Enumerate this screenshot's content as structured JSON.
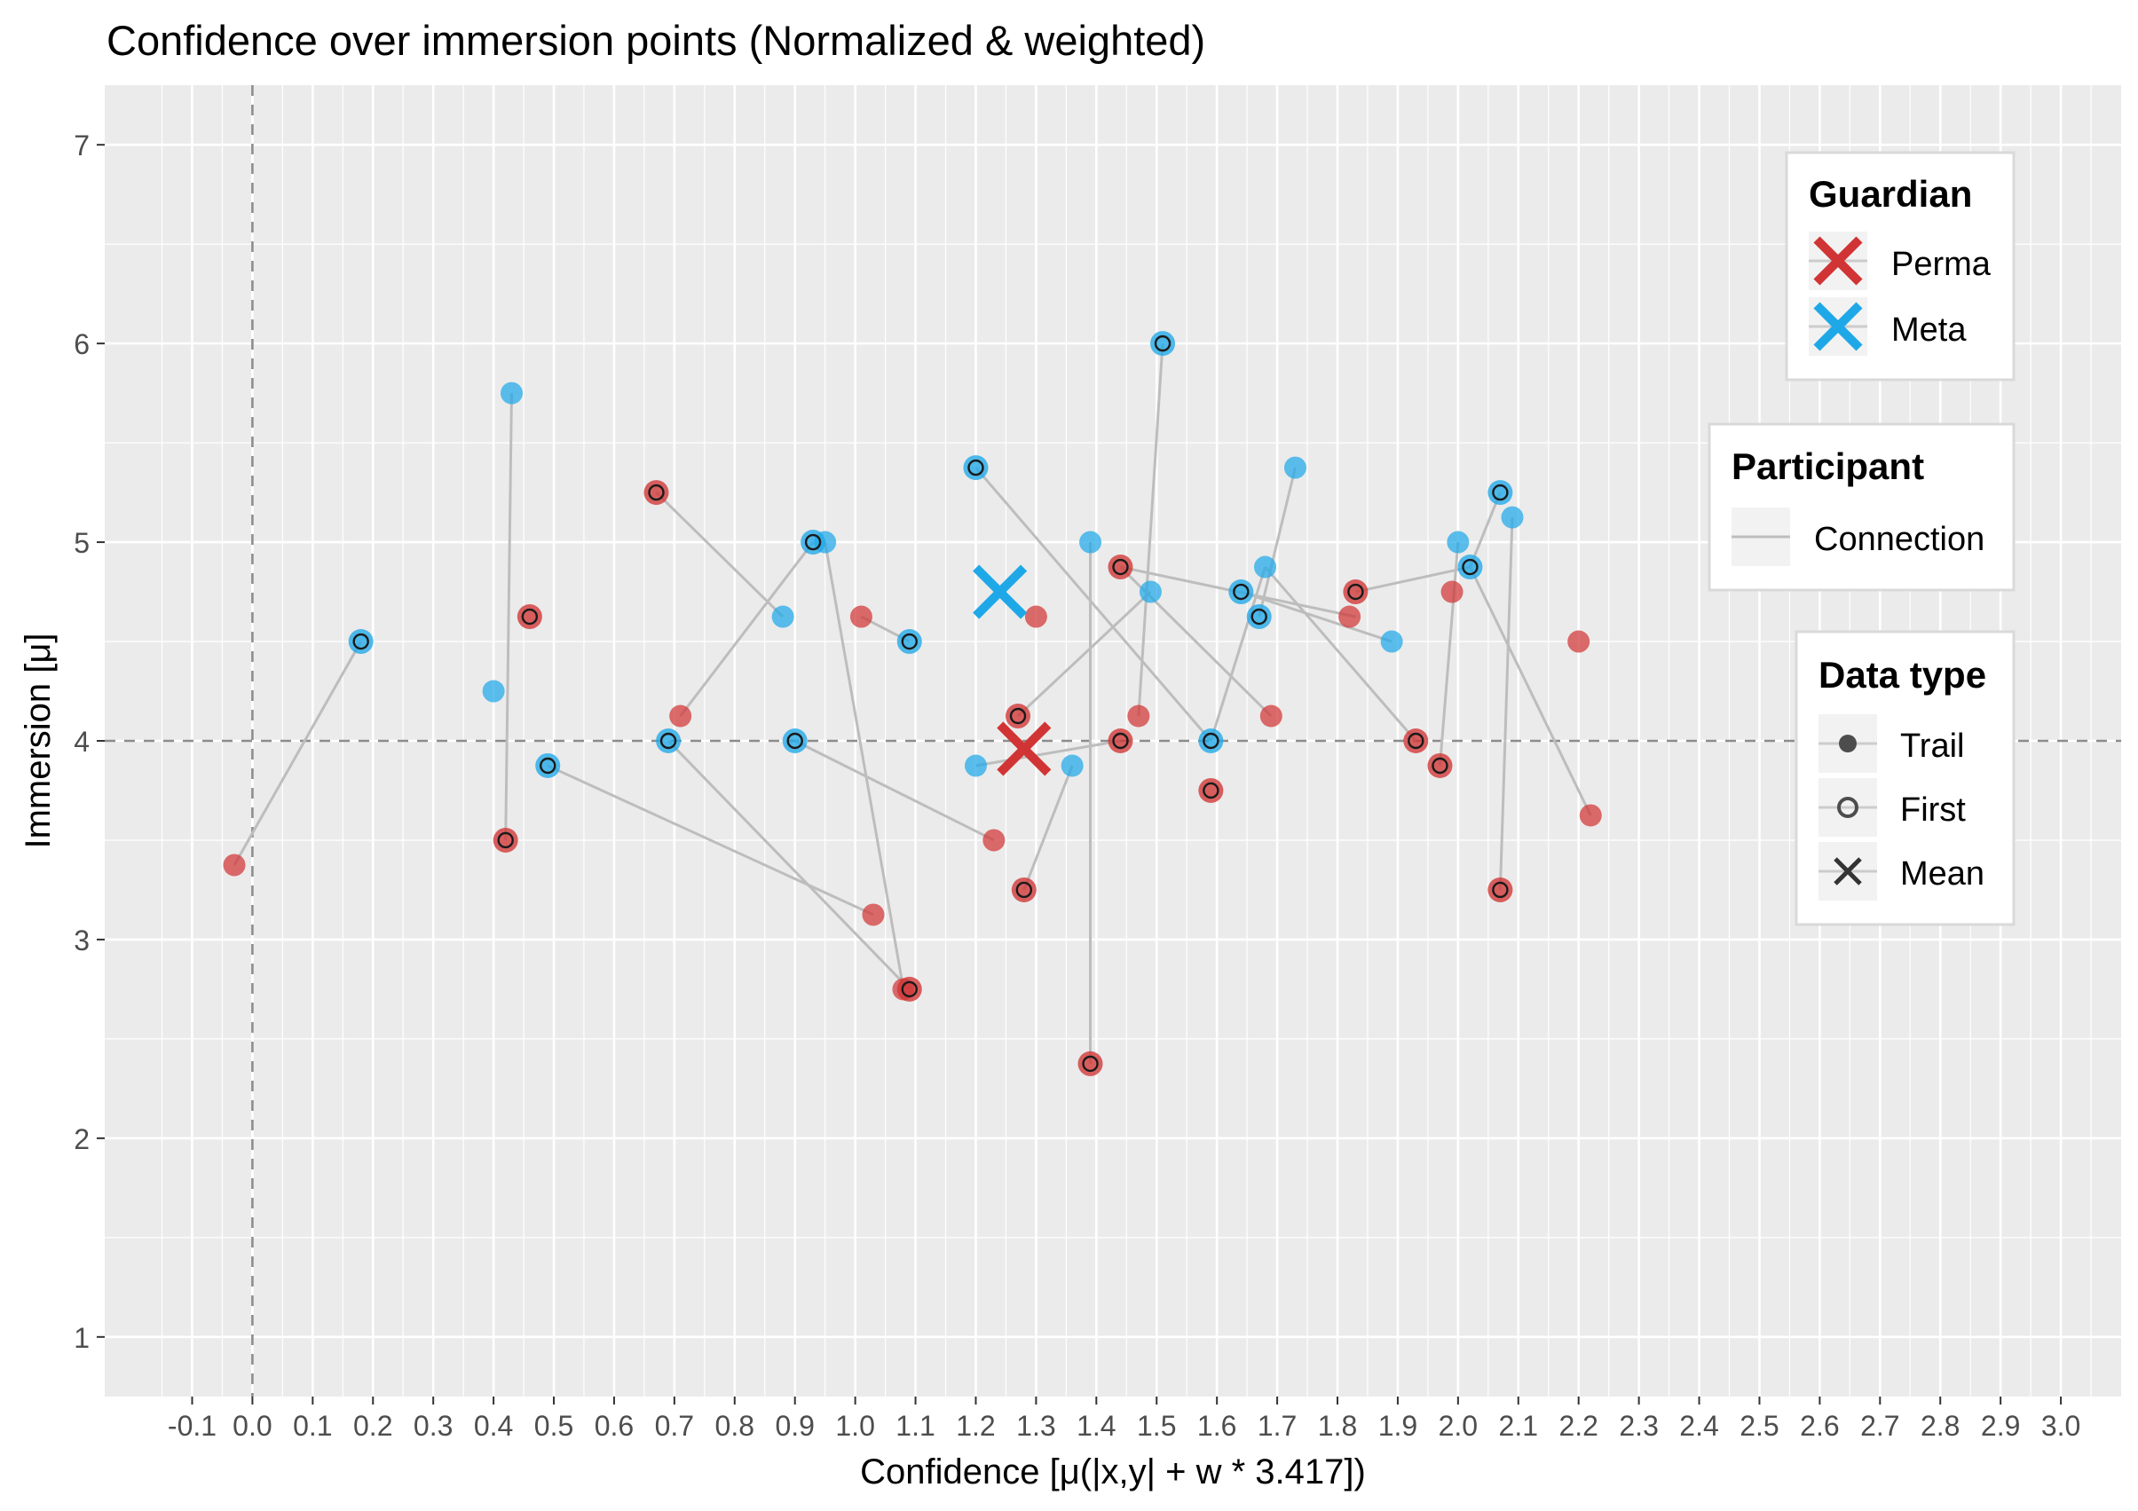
{
  "chart_data": {
    "type": "scatter",
    "title": "Confidence over immersion points (Normalized & weighted)",
    "xlabel": "Confidence [μ(|x,y| + w * 3.417])",
    "ylabel": "Immersion [μ]",
    "xlim": [
      -0.245,
      3.1
    ],
    "ylim": [
      0.7,
      7.3
    ],
    "x_ticks": [
      "-0.1",
      "0.0",
      "0.1",
      "0.2",
      "0.3",
      "0.4",
      "0.5",
      "0.6",
      "0.7",
      "0.8",
      "0.9",
      "1.0",
      "1.1",
      "1.2",
      "1.3",
      "1.4",
      "1.5",
      "1.6",
      "1.7",
      "1.8",
      "1.9",
      "2.0",
      "2.1",
      "2.2",
      "2.3",
      "2.4",
      "2.5",
      "2.6",
      "2.7",
      "2.8",
      "2.9",
      "3.0"
    ],
    "y_ticks": [
      "1",
      "2",
      "3",
      "4",
      "5",
      "6",
      "7"
    ],
    "grid": true,
    "reference_lines": {
      "x": 0.0,
      "y": 4.0
    },
    "colors": {
      "Perma": "#d13434",
      "Meta": "#1fa8e8",
      "Connection": "#bdbdbd",
      "panel": "#ebebeb",
      "grid": "#ffffff"
    },
    "legend_placement": "right",
    "legends": {
      "guardian": {
        "title": "Guardian",
        "items": [
          "Perma",
          "Meta"
        ]
      },
      "participant": {
        "title": "Participant",
        "items": [
          "Connection"
        ]
      },
      "data_type": {
        "title": "Data type",
        "items": [
          "Trail",
          "First",
          "Mean"
        ]
      }
    },
    "series": [
      {
        "name": "Meta",
        "first": [
          [
            0.18,
            4.5
          ],
          [
            0.49,
            3.875
          ],
          [
            0.69,
            4.0
          ],
          [
            0.93,
            5.0
          ],
          [
            0.9,
            4.0
          ],
          [
            1.09,
            4.5
          ],
          [
            1.2,
            5.375
          ],
          [
            1.51,
            6.0
          ],
          [
            1.59,
            4.0
          ],
          [
            1.64,
            4.75
          ],
          [
            1.67,
            4.625
          ],
          [
            2.02,
            4.875
          ],
          [
            2.07,
            5.25
          ]
        ],
        "trail": [
          [
            0.4,
            4.25
          ],
          [
            0.43,
            5.75
          ],
          [
            0.95,
            5.0
          ],
          [
            0.88,
            4.625
          ],
          [
            1.2,
            3.875
          ],
          [
            1.39,
            5.0
          ],
          [
            1.36,
            3.875
          ],
          [
            1.49,
            4.75
          ],
          [
            1.68,
            4.875
          ],
          [
            1.73,
            5.375
          ],
          [
            1.89,
            4.5
          ],
          [
            2.0,
            5.0
          ],
          [
            2.09,
            5.125
          ]
        ],
        "mean": [
          1.24,
          4.75
        ]
      },
      {
        "name": "Perma",
        "first": [
          [
            0.42,
            3.5
          ],
          [
            0.46,
            4.625
          ],
          [
            0.67,
            5.25
          ],
          [
            1.09,
            2.75
          ],
          [
            1.27,
            4.125
          ],
          [
            1.28,
            3.25
          ],
          [
            1.39,
            2.375
          ],
          [
            1.44,
            4.875
          ],
          [
            1.44,
            4.0
          ],
          [
            1.59,
            3.75
          ],
          [
            1.83,
            4.75
          ],
          [
            1.93,
            4.0
          ],
          [
            1.97,
            3.875
          ],
          [
            2.07,
            3.25
          ]
        ],
        "trail": [
          [
            -0.03,
            3.375
          ],
          [
            0.71,
            4.125
          ],
          [
            1.01,
            4.625
          ],
          [
            1.03,
            3.125
          ],
          [
            1.08,
            2.75
          ],
          [
            1.23,
            3.5
          ],
          [
            1.3,
            4.625
          ],
          [
            1.47,
            4.125
          ],
          [
            1.69,
            4.125
          ],
          [
            1.82,
            4.625
          ],
          [
            1.99,
            4.75
          ],
          [
            2.2,
            4.5
          ],
          [
            2.22,
            3.625
          ]
        ],
        "mean": [
          1.28,
          3.96
        ]
      }
    ],
    "connections": [
      [
        [
          -0.03,
          3.375
        ],
        [
          0.18,
          4.5
        ]
      ],
      [
        [
          0.43,
          5.75
        ],
        [
          0.42,
          3.5
        ]
      ],
      [
        [
          0.49,
          3.875
        ],
        [
          1.03,
          3.125
        ]
      ],
      [
        [
          0.67,
          5.25
        ],
        [
          0.88,
          4.625
        ]
      ],
      [
        [
          0.71,
          4.125
        ],
        [
          0.93,
          5.0
        ]
      ],
      [
        [
          0.95,
          5.0
        ],
        [
          1.08,
          2.75
        ]
      ],
      [
        [
          0.69,
          4.0
        ],
        [
          1.09,
          2.75
        ]
      ],
      [
        [
          0.9,
          4.0
        ],
        [
          1.23,
          3.5
        ]
      ],
      [
        [
          1.01,
          4.625
        ],
        [
          1.09,
          4.5
        ]
      ],
      [
        [
          1.2,
          5.375
        ],
        [
          1.59,
          4.0
        ]
      ],
      [
        [
          1.27,
          4.125
        ],
        [
          1.49,
          4.75
        ]
      ],
      [
        [
          1.2,
          3.875
        ],
        [
          1.44,
          4.0
        ]
      ],
      [
        [
          1.39,
          5.0
        ],
        [
          1.39,
          2.375
        ]
      ],
      [
        [
          1.28,
          3.25
        ],
        [
          1.36,
          3.875
        ]
      ],
      [
        [
          1.47,
          4.125
        ],
        [
          1.51,
          6.0
        ]
      ],
      [
        [
          1.44,
          4.875
        ],
        [
          1.83,
          4.625
        ]
      ],
      [
        [
          1.44,
          4.875
        ],
        [
          1.69,
          4.125
        ]
      ],
      [
        [
          1.59,
          4.0
        ],
        [
          1.68,
          4.875
        ]
      ],
      [
        [
          1.64,
          4.75
        ],
        [
          1.89,
          4.5
        ]
      ],
      [
        [
          1.67,
          4.625
        ],
        [
          1.73,
          5.375
        ]
      ],
      [
        [
          1.68,
          4.875
        ],
        [
          1.93,
          4.0
        ]
      ],
      [
        [
          1.83,
          4.75
        ],
        [
          2.02,
          4.875
        ]
      ],
      [
        [
          1.97,
          3.875
        ],
        [
          2.0,
          5.0
        ]
      ],
      [
        [
          2.02,
          4.875
        ],
        [
          2.22,
          3.625
        ]
      ],
      [
        [
          2.07,
          5.25
        ],
        [
          2.02,
          4.875
        ]
      ],
      [
        [
          2.09,
          5.125
        ],
        [
          2.07,
          3.25
        ]
      ]
    ]
  }
}
